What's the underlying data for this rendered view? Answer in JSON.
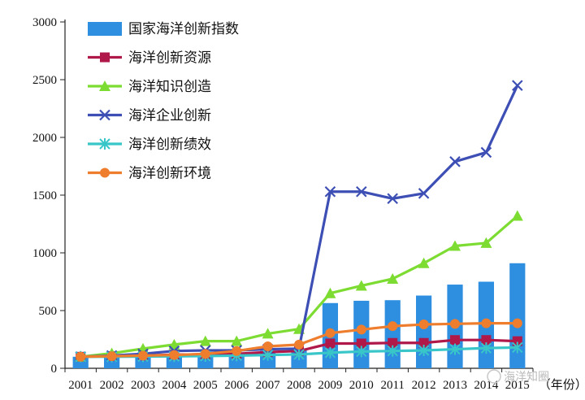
{
  "chart_data": {
    "type": "bar+line",
    "x": [
      "2001",
      "2002",
      "2003",
      "2004",
      "2005",
      "2006",
      "2007",
      "2008",
      "2009",
      "2010",
      "2011",
      "2012",
      "2013",
      "2014",
      "2015"
    ],
    "x_unit_label": "（年份）",
    "ylim": [
      0,
      3000
    ],
    "yticks": [
      0,
      500,
      1000,
      1500,
      2000,
      2500,
      3000
    ],
    "grid": false,
    "legend_position": "top-left",
    "bars": {
      "name": "国家海洋创新指数",
      "color": "#2e8fe0",
      "values": [
        100,
        105,
        115,
        125,
        130,
        135,
        150,
        165,
        565,
        585,
        590,
        630,
        725,
        750,
        910
      ]
    },
    "series": [
      {
        "name": "海洋创新资源",
        "color": "#b0184a",
        "marker": "square",
        "values": [
          100,
          105,
          110,
          118,
          120,
          125,
          140,
          150,
          215,
          215,
          220,
          220,
          245,
          245,
          235
        ]
      },
      {
        "name": "海洋知识创造",
        "color": "#7ddc32",
        "marker": "triangle",
        "values": [
          100,
          130,
          170,
          205,
          235,
          235,
          300,
          340,
          650,
          715,
          775,
          910,
          1060,
          1085,
          1320
        ]
      },
      {
        "name": "海洋企业创新",
        "color": "#3d4fb4",
        "marker": "x",
        "values": [
          100,
          110,
          125,
          150,
          155,
          155,
          165,
          170,
          1530,
          1530,
          1470,
          1515,
          1790,
          1870,
          2450
        ]
      },
      {
        "name": "海洋创新绩效",
        "color": "#38c6c8",
        "marker": "asterisk",
        "values": [
          100,
          100,
          102,
          104,
          106,
          110,
          115,
          120,
          135,
          145,
          150,
          155,
          165,
          175,
          180
        ]
      },
      {
        "name": "海洋创新环境",
        "color": "#ee7d2e",
        "marker": "circle",
        "values": [
          100,
          105,
          110,
          115,
          125,
          150,
          190,
          205,
          305,
          335,
          365,
          380,
          385,
          390,
          390
        ]
      }
    ]
  },
  "watermark": "海洋知圈"
}
